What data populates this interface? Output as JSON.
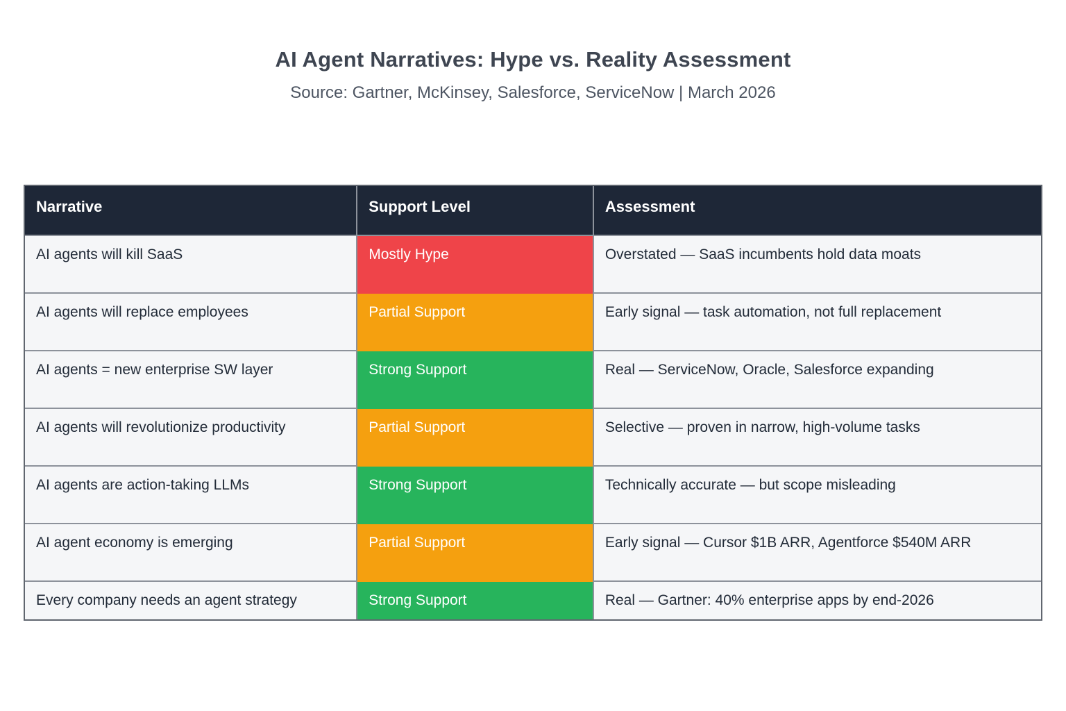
{
  "page": {
    "title": "AI Agent Narratives: Hype vs. Reality Assessment",
    "subtitle": "Source: Gartner, McKinsey, Salesforce, ServiceNow | March 2026"
  },
  "colors": {
    "header_bg": "#1e2737",
    "row_bg": "#f5f6f8",
    "border_gray": "#8d929b",
    "mostly_hype_red": "#ef4449",
    "partial_support_orange": "#f5a00f",
    "strong_support_green": "#27b45c"
  },
  "chart_data": {
    "type": "table",
    "title": "AI Agent Narratives: Hype vs. Reality Assessment",
    "subtitle": "Source: Gartner, McKinsey, Salesforce, ServiceNow | March 2026",
    "columns": [
      "Narrative",
      "Support Level",
      "Assessment"
    ],
    "support_level_legend": {
      "Mostly Hype": "#ef4449",
      "Partial Support": "#f5a00f",
      "Strong Support": "#27b45c"
    },
    "rows": [
      {
        "narrative": "AI agents will kill SaaS",
        "support_level": "Mostly Hype",
        "support_color": "#ef4449",
        "assessment": "Overstated — SaaS incumbents hold data moats"
      },
      {
        "narrative": "AI agents will replace employees",
        "support_level": "Partial Support",
        "support_color": "#f5a00f",
        "assessment": "Early signal — task automation, not full replacement"
      },
      {
        "narrative": "AI agents = new enterprise SW layer",
        "support_level": "Strong Support",
        "support_color": "#27b45c",
        "assessment": "Real — ServiceNow, Oracle, Salesforce expanding"
      },
      {
        "narrative": "AI agents will revolutionize productivity",
        "support_level": "Partial Support",
        "support_color": "#f5a00f",
        "assessment": "Selective — proven in narrow, high-volume tasks"
      },
      {
        "narrative": "AI agents are action-taking LLMs",
        "support_level": "Strong Support",
        "support_color": "#27b45c",
        "assessment": "Technically accurate — but scope misleading"
      },
      {
        "narrative": "AI agent economy is emerging",
        "support_level": "Partial Support",
        "support_color": "#f5a00f",
        "assessment": "Early signal — Cursor $1B ARR, Agentforce $540M ARR"
      },
      {
        "narrative": "Every company needs an agent strategy",
        "support_level": "Strong Support",
        "support_color": "#27b45c",
        "assessment": "Real — Gartner: 40% enterprise apps by end-2026"
      }
    ]
  }
}
